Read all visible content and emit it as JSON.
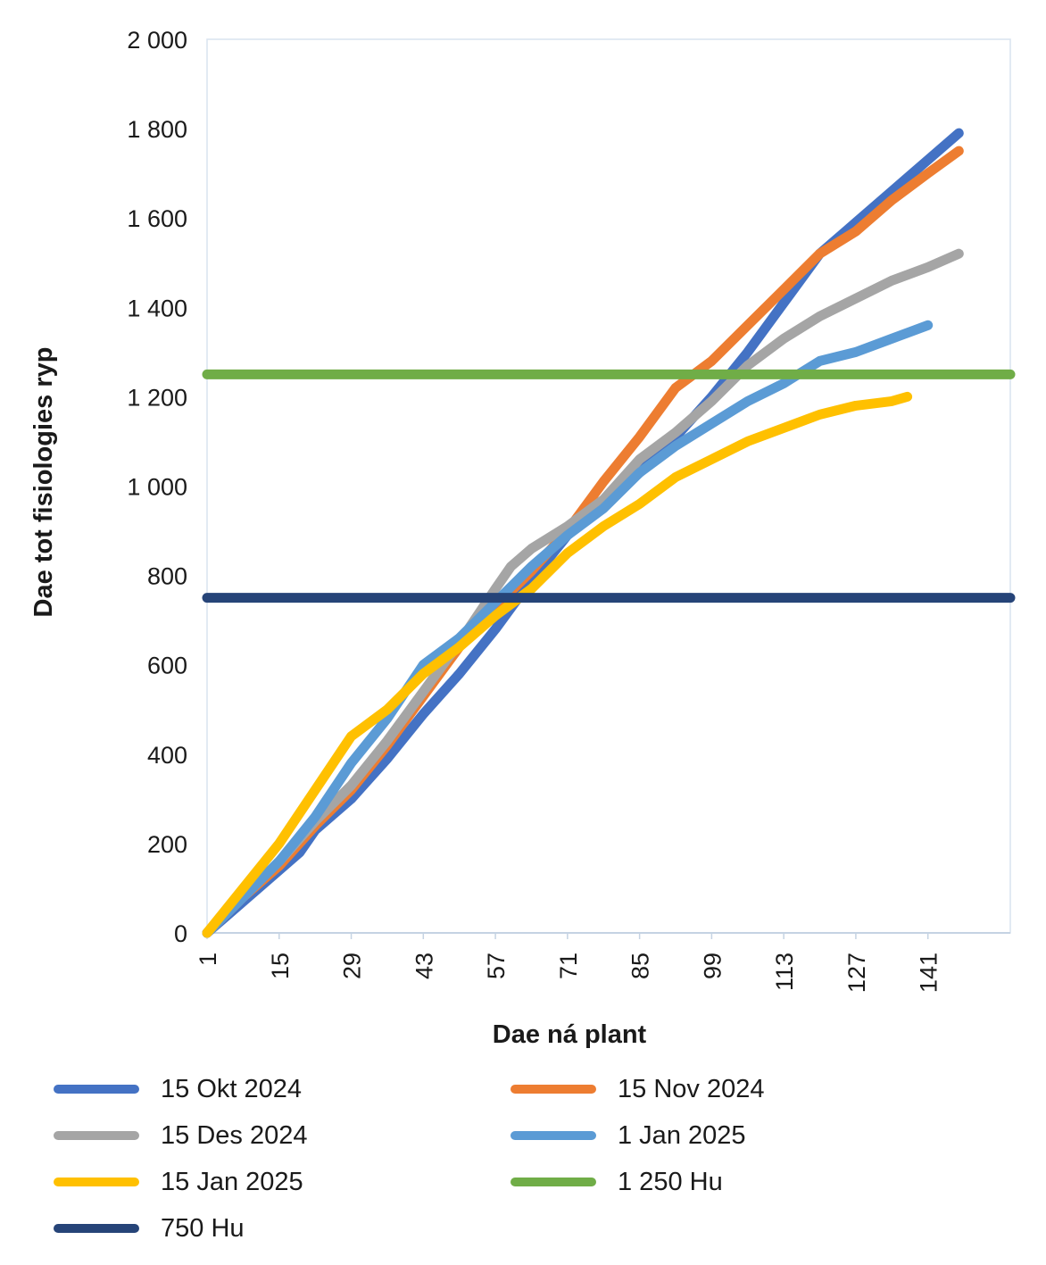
{
  "chart_data": {
    "type": "line",
    "xlabel": "Dae ná plant",
    "ylabel": "Dae tot fisiologies ryp",
    "ylim": [
      0,
      2000
    ],
    "xlim": [
      1,
      157
    ],
    "yticks": [
      0,
      200,
      400,
      600,
      800,
      1000,
      1200,
      1400,
      1600,
      1800,
      2000
    ],
    "ytick_labels": [
      "0",
      "200",
      "400",
      "600",
      "800",
      "1 000",
      "1 200",
      "1 400",
      "1 600",
      "1 800",
      "2 000"
    ],
    "xticks": [
      1,
      15,
      29,
      43,
      57,
      71,
      85,
      99,
      113,
      127,
      141
    ],
    "xtick_labels": [
      "1",
      "15",
      "29",
      "43",
      "57",
      "71",
      "85",
      "99",
      "113",
      "127",
      "141"
    ],
    "grid": false,
    "legend_position": "bottom",
    "series": [
      {
        "name": "15 Okt 2024",
        "color": "#4472C4",
        "x": [
          1,
          8,
          15,
          19,
          22,
          29,
          36,
          43,
          50,
          57,
          64,
          71,
          78,
          85,
          92,
          99,
          106,
          113,
          120,
          127,
          134,
          141,
          147
        ],
        "y": [
          0,
          70,
          140,
          180,
          230,
          300,
          390,
          490,
          580,
          680,
          790,
          890,
          960,
          1030,
          1110,
          1200,
          1300,
          1410,
          1520,
          1590,
          1660,
          1730,
          1790
        ]
      },
      {
        "name": "15 Nov 2024",
        "color": "#ED7D31",
        "x": [
          1,
          8,
          15,
          22,
          29,
          36,
          43,
          50,
          57,
          64,
          71,
          78,
          85,
          92,
          99,
          106,
          113,
          120,
          127,
          134,
          141,
          147
        ],
        "y": [
          0,
          80,
          150,
          240,
          320,
          420,
          530,
          640,
          730,
          810,
          900,
          1010,
          1110,
          1220,
          1280,
          1360,
          1440,
          1520,
          1570,
          1640,
          1700,
          1750
        ]
      },
      {
        "name": "15 Des 2024",
        "color": "#A5A5A5",
        "x": [
          1,
          8,
          15,
          22,
          29,
          36,
          43,
          50,
          57,
          60,
          64,
          71,
          78,
          85,
          92,
          99,
          106,
          113,
          120,
          127,
          134,
          141,
          147
        ],
        "y": [
          0,
          80,
          160,
          250,
          330,
          430,
          540,
          650,
          770,
          820,
          860,
          910,
          970,
          1060,
          1120,
          1190,
          1270,
          1330,
          1380,
          1420,
          1460,
          1490,
          1520
        ]
      },
      {
        "name": "1 Jan 2025",
        "color": "#5B9BD5",
        "x": [
          1,
          8,
          15,
          22,
          29,
          36,
          43,
          50,
          57,
          64,
          71,
          78,
          85,
          92,
          99,
          106,
          113,
          120,
          127,
          134,
          141
        ],
        "y": [
          0,
          80,
          160,
          260,
          380,
          480,
          600,
          660,
          740,
          820,
          890,
          950,
          1030,
          1090,
          1140,
          1190,
          1230,
          1280,
          1300,
          1330,
          1360
        ]
      },
      {
        "name": "15 Jan 2025",
        "color": "#FFC000",
        "x": [
          1,
          8,
          15,
          22,
          29,
          36,
          43,
          50,
          57,
          64,
          71,
          78,
          85,
          92,
          99,
          106,
          113,
          120,
          127,
          134,
          137
        ],
        "y": [
          0,
          100,
          200,
          320,
          440,
          500,
          580,
          640,
          710,
          770,
          850,
          910,
          960,
          1020,
          1060,
          1100,
          1130,
          1160,
          1180,
          1190,
          1200
        ]
      },
      {
        "name": "750 Hu",
        "color": "#264478",
        "x": [
          1,
          157
        ],
        "y": [
          750,
          750
        ]
      },
      {
        "name": "1 250 Hu",
        "color": "#70AD47",
        "x": [
          1,
          157
        ],
        "y": [
          1250,
          1250
        ]
      }
    ]
  }
}
